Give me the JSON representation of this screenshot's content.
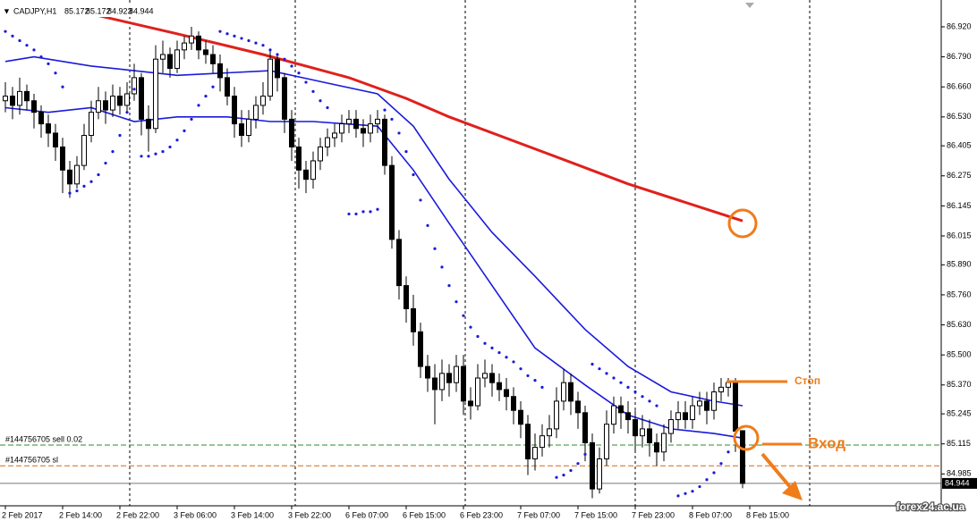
{
  "chart_data": {
    "type": "candlestick",
    "symbol": "CADJPY,H1",
    "ylim": [
      84.847,
      87.036
    ],
    "xlim": [
      -0.75,
      130.75
    ],
    "yticks": [
      {
        "value": 86.92,
        "label": "86.920"
      },
      {
        "value": 86.79,
        "label": "86.790"
      },
      {
        "value": 86.66,
        "label": "86.660"
      },
      {
        "value": 86.53,
        "label": "86.530"
      },
      86.405,
      86.275,
      86.145,
      86.015,
      {
        "value": 85.89,
        "label": "85.890"
      },
      {
        "value": 85.76,
        "label": "85.760"
      },
      {
        "value": 85.63,
        "label": "85.630"
      },
      {
        "value": 85.5,
        "label": "85.500"
      },
      {
        "value": 85.37,
        "label": "85.370"
      },
      85.245,
      85.115,
      84.985
    ],
    "xticks": [
      {
        "value": 0,
        "label": "2 Feb 2017"
      },
      {
        "value": 8,
        "label": "2 Feb 14:00"
      },
      {
        "value": 16,
        "label": "2 Feb 22:00"
      },
      {
        "value": 24,
        "label": "3 Feb 06:00"
      },
      {
        "value": 32,
        "label": "3 Feb 14:00"
      },
      {
        "value": 40,
        "label": "3 Feb 22:00"
      },
      {
        "value": 48,
        "label": "6 Feb 07:00"
      },
      {
        "value": 56,
        "label": "6 Feb 15:00"
      },
      {
        "value": 64,
        "label": "6 Feb 23:00"
      },
      {
        "value": 72,
        "label": "7 Feb 07:00"
      },
      {
        "value": 80,
        "label": "7 Feb 15:00"
      },
      {
        "value": 88,
        "label": "7 Feb 23:00"
      },
      {
        "value": 96,
        "label": "8 Feb 07:00"
      },
      {
        "value": 104,
        "label": "8 Feb 15:00"
      }
    ],
    "candles": [
      [
        86.6,
        86.68,
        86.55,
        86.62
      ],
      [
        86.62,
        86.66,
        86.52,
        86.58
      ],
      [
        86.58,
        86.7,
        86.54,
        86.64
      ],
      [
        86.64,
        86.67,
        86.56,
        86.6
      ],
      [
        86.6,
        86.63,
        86.48,
        86.55
      ],
      [
        86.55,
        86.58,
        86.44,
        86.5
      ],
      [
        86.5,
        86.54,
        86.4,
        86.46
      ],
      [
        86.46,
        86.5,
        86.34,
        86.4
      ],
      [
        86.4,
        86.44,
        86.2,
        86.3
      ],
      [
        86.3,
        86.34,
        86.18,
        86.24
      ],
      [
        86.24,
        86.36,
        86.22,
        86.32
      ],
      [
        86.32,
        86.5,
        86.3,
        86.45
      ],
      [
        86.45,
        86.6,
        86.42,
        86.55
      ],
      [
        86.55,
        86.66,
        86.52,
        86.6
      ],
      [
        86.6,
        86.64,
        86.5,
        86.56
      ],
      [
        86.56,
        86.67,
        86.53,
        86.62
      ],
      [
        86.62,
        86.66,
        86.54,
        86.58
      ],
      [
        86.58,
        86.68,
        86.55,
        86.63
      ],
      [
        86.63,
        86.76,
        86.6,
        86.7
      ],
      [
        86.7,
        86.72,
        86.45,
        86.52
      ],
      [
        86.52,
        86.58,
        86.38,
        86.48
      ],
      [
        86.48,
        86.84,
        86.46,
        86.78
      ],
      [
        86.78,
        86.86,
        86.72,
        86.8
      ],
      [
        86.8,
        86.83,
        86.7,
        86.74
      ],
      [
        86.74,
        86.86,
        86.72,
        86.82
      ],
      [
        86.82,
        86.88,
        86.78,
        86.85
      ],
      [
        86.85,
        86.92,
        86.82,
        86.88
      ],
      [
        86.88,
        86.9,
        86.78,
        86.82
      ],
      [
        86.82,
        86.86,
        86.76,
        86.8
      ],
      [
        86.8,
        86.84,
        86.72,
        86.76
      ],
      [
        86.76,
        86.8,
        86.64,
        86.7
      ],
      [
        86.7,
        86.74,
        86.58,
        86.62
      ],
      [
        86.62,
        86.66,
        86.44,
        86.5
      ],
      [
        86.5,
        86.56,
        86.4,
        86.45
      ],
      [
        86.45,
        86.56,
        86.42,
        86.52
      ],
      [
        86.52,
        86.62,
        86.48,
        86.58
      ],
      [
        86.58,
        86.68,
        86.54,
        86.62
      ],
      [
        86.62,
        86.82,
        86.6,
        86.78
      ],
      [
        86.78,
        86.8,
        86.64,
        86.7
      ],
      [
        86.7,
        86.72,
        86.46,
        86.52
      ],
      [
        86.52,
        86.56,
        86.34,
        86.4
      ],
      [
        86.4,
        86.44,
        86.22,
        86.3
      ],
      [
        86.3,
        86.34,
        86.2,
        86.26
      ],
      [
        86.26,
        86.38,
        86.22,
        86.34
      ],
      [
        86.34,
        86.44,
        86.3,
        86.4
      ],
      [
        86.4,
        86.48,
        86.36,
        86.44
      ],
      [
        86.44,
        86.5,
        86.4,
        86.46
      ],
      [
        86.46,
        86.54,
        86.42,
        86.5
      ],
      [
        86.5,
        86.56,
        86.46,
        86.52
      ],
      [
        86.52,
        86.56,
        86.44,
        86.48
      ],
      [
        86.48,
        86.52,
        86.4,
        86.46
      ],
      [
        86.46,
        86.54,
        86.42,
        86.5
      ],
      [
        86.5,
        86.56,
        86.46,
        86.52
      ],
      [
        86.52,
        86.54,
        86.28,
        86.32
      ],
      [
        86.32,
        86.36,
        85.96,
        86.0
      ],
      [
        86.0,
        86.04,
        85.74,
        85.8
      ],
      [
        85.8,
        85.84,
        85.64,
        85.7
      ],
      [
        85.7,
        85.76,
        85.54,
        85.6
      ],
      [
        85.6,
        85.64,
        85.4,
        85.45
      ],
      [
        85.45,
        85.5,
        85.34,
        85.4
      ],
      [
        85.4,
        85.46,
        85.2,
        85.35
      ],
      [
        85.35,
        85.48,
        85.3,
        85.42
      ],
      [
        85.42,
        85.46,
        85.32,
        85.38
      ],
      [
        85.38,
        85.5,
        85.34,
        85.45
      ],
      [
        85.45,
        85.5,
        85.24,
        85.3
      ],
      [
        85.3,
        85.36,
        85.22,
        85.28
      ],
      [
        85.28,
        85.46,
        85.26,
        85.4
      ],
      [
        85.4,
        85.48,
        85.36,
        85.42
      ],
      [
        85.42,
        85.46,
        85.32,
        85.38
      ],
      [
        85.38,
        85.42,
        85.3,
        85.35
      ],
      [
        85.35,
        85.4,
        85.26,
        85.32
      ],
      [
        85.32,
        85.36,
        85.2,
        85.26
      ],
      [
        85.26,
        85.3,
        85.14,
        85.2
      ],
      [
        85.2,
        85.24,
        84.98,
        85.05
      ],
      [
        85.05,
        85.16,
        85.0,
        85.1
      ],
      [
        85.1,
        85.2,
        85.06,
        85.15
      ],
      [
        85.15,
        85.24,
        85.1,
        85.18
      ],
      [
        85.18,
        85.36,
        85.14,
        85.3
      ],
      [
        85.3,
        85.44,
        85.26,
        85.38
      ],
      [
        85.38,
        85.42,
        85.24,
        85.3
      ],
      [
        85.3,
        85.34,
        85.18,
        85.25
      ],
      [
        85.25,
        85.28,
        85.04,
        85.12
      ],
      [
        85.12,
        85.16,
        84.88,
        84.92
      ],
      [
        84.92,
        85.1,
        84.9,
        85.05
      ],
      [
        85.05,
        85.26,
        85.02,
        85.2
      ],
      [
        85.2,
        85.32,
        85.16,
        85.28
      ],
      [
        85.28,
        85.32,
        85.18,
        85.25
      ],
      [
        85.25,
        85.3,
        85.16,
        85.22
      ],
      [
        85.22,
        85.26,
        85.08,
        85.15
      ],
      [
        85.15,
        85.24,
        85.1,
        85.18
      ],
      [
        85.18,
        85.22,
        85.06,
        85.12
      ],
      [
        85.12,
        85.16,
        85.02,
        85.08
      ],
      [
        85.08,
        85.2,
        85.04,
        85.16
      ],
      [
        85.16,
        85.26,
        85.12,
        85.22
      ],
      [
        85.22,
        85.3,
        85.18,
        85.25
      ],
      [
        85.25,
        85.3,
        85.18,
        85.22
      ],
      [
        85.22,
        85.32,
        85.18,
        85.28
      ],
      [
        85.28,
        85.34,
        85.24,
        85.3
      ],
      [
        85.3,
        85.34,
        85.2,
        85.26
      ],
      [
        85.26,
        85.38,
        85.22,
        85.34
      ],
      [
        85.34,
        85.4,
        85.3,
        85.36
      ],
      [
        85.36,
        85.4,
        85.32,
        85.38
      ],
      [
        85.38,
        85.4,
        85.08,
        85.17
      ],
      [
        85.172,
        85.172,
        84.923,
        84.944
      ]
    ],
    "lines": [
      {
        "color": "#e0201c",
        "width": 3,
        "x": [
          10,
          24,
          36,
          48,
          56,
          62,
          75,
          87,
          99,
          103
        ],
        "values": [
          86.99,
          86.89,
          86.8,
          86.7,
          86.61,
          86.53,
          86.38,
          86.24,
          86.12,
          86.08
        ]
      },
      {
        "color": "#1a1adc",
        "width": 1.6,
        "x": [
          0,
          4,
          12,
          24,
          37,
          43,
          52,
          57,
          62,
          68,
          74,
          81,
          87,
          93,
          99,
          103
        ],
        "values": [
          86.77,
          86.79,
          86.75,
          86.71,
          86.73,
          86.69,
          86.63,
          86.49,
          86.26,
          86.03,
          85.84,
          85.61,
          85.45,
          85.34,
          85.3,
          85.28
        ]
      },
      {
        "color": "#1a1adc",
        "width": 1.6,
        "x": [
          0,
          6,
          12,
          18,
          24,
          31,
          37,
          43,
          52,
          57,
          62,
          68,
          74,
          81,
          87,
          93,
          99,
          103
        ],
        "values": [
          86.57,
          86.55,
          86.57,
          86.51,
          86.53,
          86.53,
          86.51,
          86.51,
          86.49,
          86.3,
          86.07,
          85.8,
          85.53,
          85.37,
          85.24,
          85.18,
          85.16,
          85.14
        ]
      }
    ],
    "sar": {
      "color": "#1a1adc",
      "x": [
        0,
        1,
        2,
        3,
        4,
        5,
        6,
        7,
        8,
        9,
        10,
        11,
        12,
        13,
        14,
        15,
        16,
        17,
        18,
        19,
        20,
        21,
        22,
        23,
        24,
        25,
        26,
        27,
        28,
        29,
        30,
        31,
        32,
        33,
        34,
        35,
        36,
        37,
        38,
        39,
        40,
        41,
        42,
        43,
        44,
        45,
        48,
        49,
        50,
        51,
        52,
        53,
        54,
        55,
        56,
        57,
        58,
        59,
        60,
        61,
        62,
        63,
        64,
        65,
        66,
        67,
        68,
        69,
        70,
        71,
        72,
        73,
        74,
        75,
        77,
        78,
        79,
        80,
        81,
        82,
        83,
        84,
        85,
        86,
        87,
        88,
        89,
        90,
        91,
        94,
        95,
        96,
        97,
        98,
        99,
        100,
        101
      ],
      "values": [
        86.9,
        86.88,
        86.86,
        86.84,
        86.82,
        86.79,
        86.76,
        86.72,
        86.66,
        86.2,
        86.21,
        86.23,
        86.25,
        86.28,
        86.33,
        86.38,
        86.45,
        86.55,
        86.65,
        86.36,
        86.36,
        86.37,
        86.38,
        86.4,
        86.43,
        86.47,
        86.52,
        86.58,
        86.62,
        86.66,
        86.9,
        86.89,
        86.88,
        86.87,
        86.86,
        86.85,
        86.84,
        86.82,
        86.8,
        86.78,
        86.75,
        86.72,
        86.68,
        86.64,
        86.6,
        86.57,
        86.11,
        86.11,
        86.12,
        86.12,
        86.13,
        86.56,
        86.52,
        86.46,
        86.38,
        86.28,
        86.17,
        86.06,
        85.96,
        85.88,
        85.8,
        85.73,
        85.67,
        85.62,
        85.58,
        85.55,
        85.53,
        85.51,
        85.49,
        85.47,
        85.44,
        85.41,
        85.39,
        85.36,
        84.97,
        84.98,
        85.0,
        85.03,
        85.07,
        85.46,
        85.44,
        85.42,
        85.4,
        85.38,
        85.36,
        85.34,
        85.32,
        85.3,
        85.28,
        84.89,
        84.9,
        84.91,
        84.93,
        84.96,
        84.99,
        85.03,
        85.08
      ]
    },
    "orders": [
      {
        "label": "#144756705 sell 0.02",
        "price": 85.11,
        "color": "#2e8b2e"
      },
      {
        "label": "#144756705 sl",
        "price": 85.02,
        "color": "#d2691e"
      }
    ],
    "annotations": {
      "stop": "Стоп",
      "entry": "Вход",
      "watermark": "forex24.ac.ua"
    }
  }
}
